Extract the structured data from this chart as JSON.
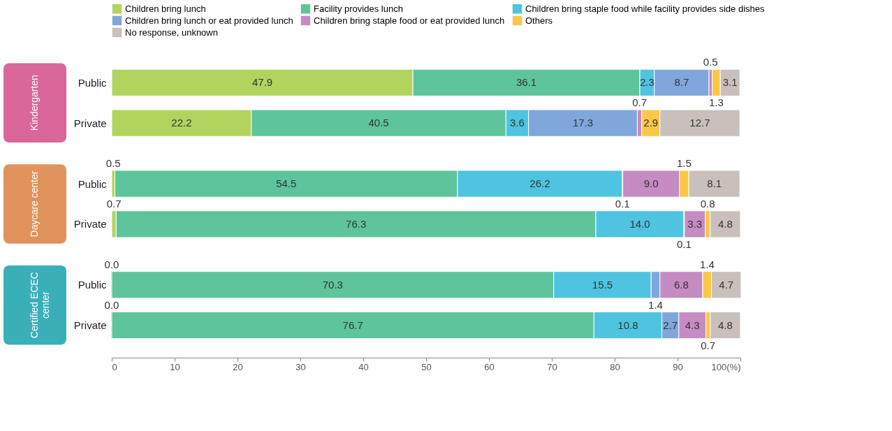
{
  "chart_data": {
    "type": "bar",
    "orientation": "horizontal",
    "stacked": true,
    "legend": "top",
    "grid": false,
    "categories": [
      "Public",
      "Private",
      "Public",
      "Private",
      "Public",
      "Private"
    ],
    "annotations": [
      "Kindergarten",
      "Daycare center",
      "Certified ECEC center"
    ],
    "xlim": [
      0,
      100
    ],
    "xticks": [
      0,
      10,
      20,
      30,
      40,
      50,
      60,
      70,
      80,
      90,
      {
        "value": 100,
        "label": "100(%)"
      }
    ],
    "series": [
      {
        "name": "Children bring lunch",
        "color": "#b2d35e",
        "values": [
          47.9,
          22.2,
          0.5,
          0.7,
          0.0,
          0.0
        ],
        "value_labels": [
          "47.9",
          "22.2",
          "0.5",
          "0.7",
          "0.0",
          "0.0"
        ]
      },
      {
        "name": "Facility provides lunch",
        "color": "#5ec49c",
        "values": [
          36.1,
          40.5,
          54.5,
          76.3,
          70.3,
          76.7
        ],
        "value_labels": [
          "36.1",
          "40.5",
          "54.5",
          "76.3",
          "70.3",
          "76.7"
        ]
      },
      {
        "name": "Children bring staple food while facility provides side dishes",
        "color": "#4ec4e0",
        "values": [
          2.3,
          3.6,
          26.2,
          14.0,
          15.5,
          10.8
        ],
        "value_labels": [
          "2.3",
          "3.6",
          "26.2",
          "14.0",
          "15.5",
          "10.8"
        ]
      },
      {
        "name": "Children bring lunch or eat provided lunch",
        "color": "#7fa7dc",
        "values": [
          8.7,
          17.3,
          0.1,
          0.1,
          1.4,
          2.7
        ],
        "value_labels": [
          "8.7",
          "17.3",
          "0.1",
          "0.1",
          "1.4",
          "2.7"
        ]
      },
      {
        "name": "Children bring staple food or eat provided lunch",
        "color": "#c68bc3",
        "values": [
          0.5,
          0.7,
          9.0,
          3.3,
          6.8,
          4.3
        ],
        "value_labels": [
          "0.5",
          "0.7",
          "9.0",
          "3.3",
          "6.8",
          "4.3"
        ]
      },
      {
        "name": "Others",
        "color": "#fbc749",
        "values": [
          1.3,
          2.9,
          1.5,
          0.8,
          1.4,
          0.7
        ],
        "value_labels": [
          "1.3",
          "2.9",
          "1.5",
          "0.8",
          "1.4",
          "0.7"
        ]
      },
      {
        "name": "No response, unknown",
        "color": "#c9c0bb",
        "values": [
          3.1,
          12.7,
          8.1,
          4.8,
          4.7,
          4.8
        ],
        "value_labels": [
          "3.1",
          "12.7",
          "8.1",
          "4.8",
          "4.7",
          "4.8"
        ]
      }
    ]
  }
}
